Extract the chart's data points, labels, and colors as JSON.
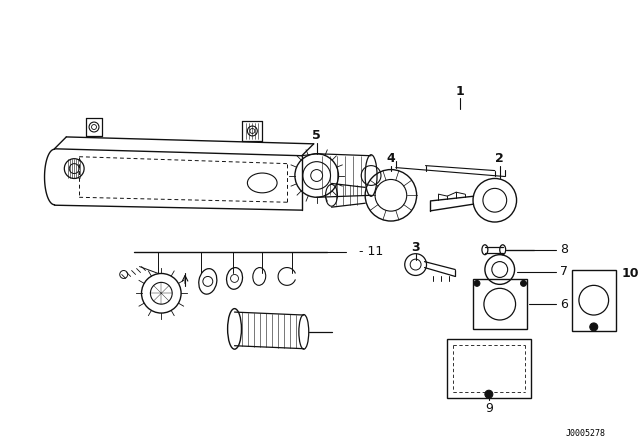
{
  "background_color": "#ffffff",
  "line_color": "#111111",
  "watermark": "J0005278",
  "fig_w": 6.4,
  "fig_h": 4.48,
  "dpi": 100
}
